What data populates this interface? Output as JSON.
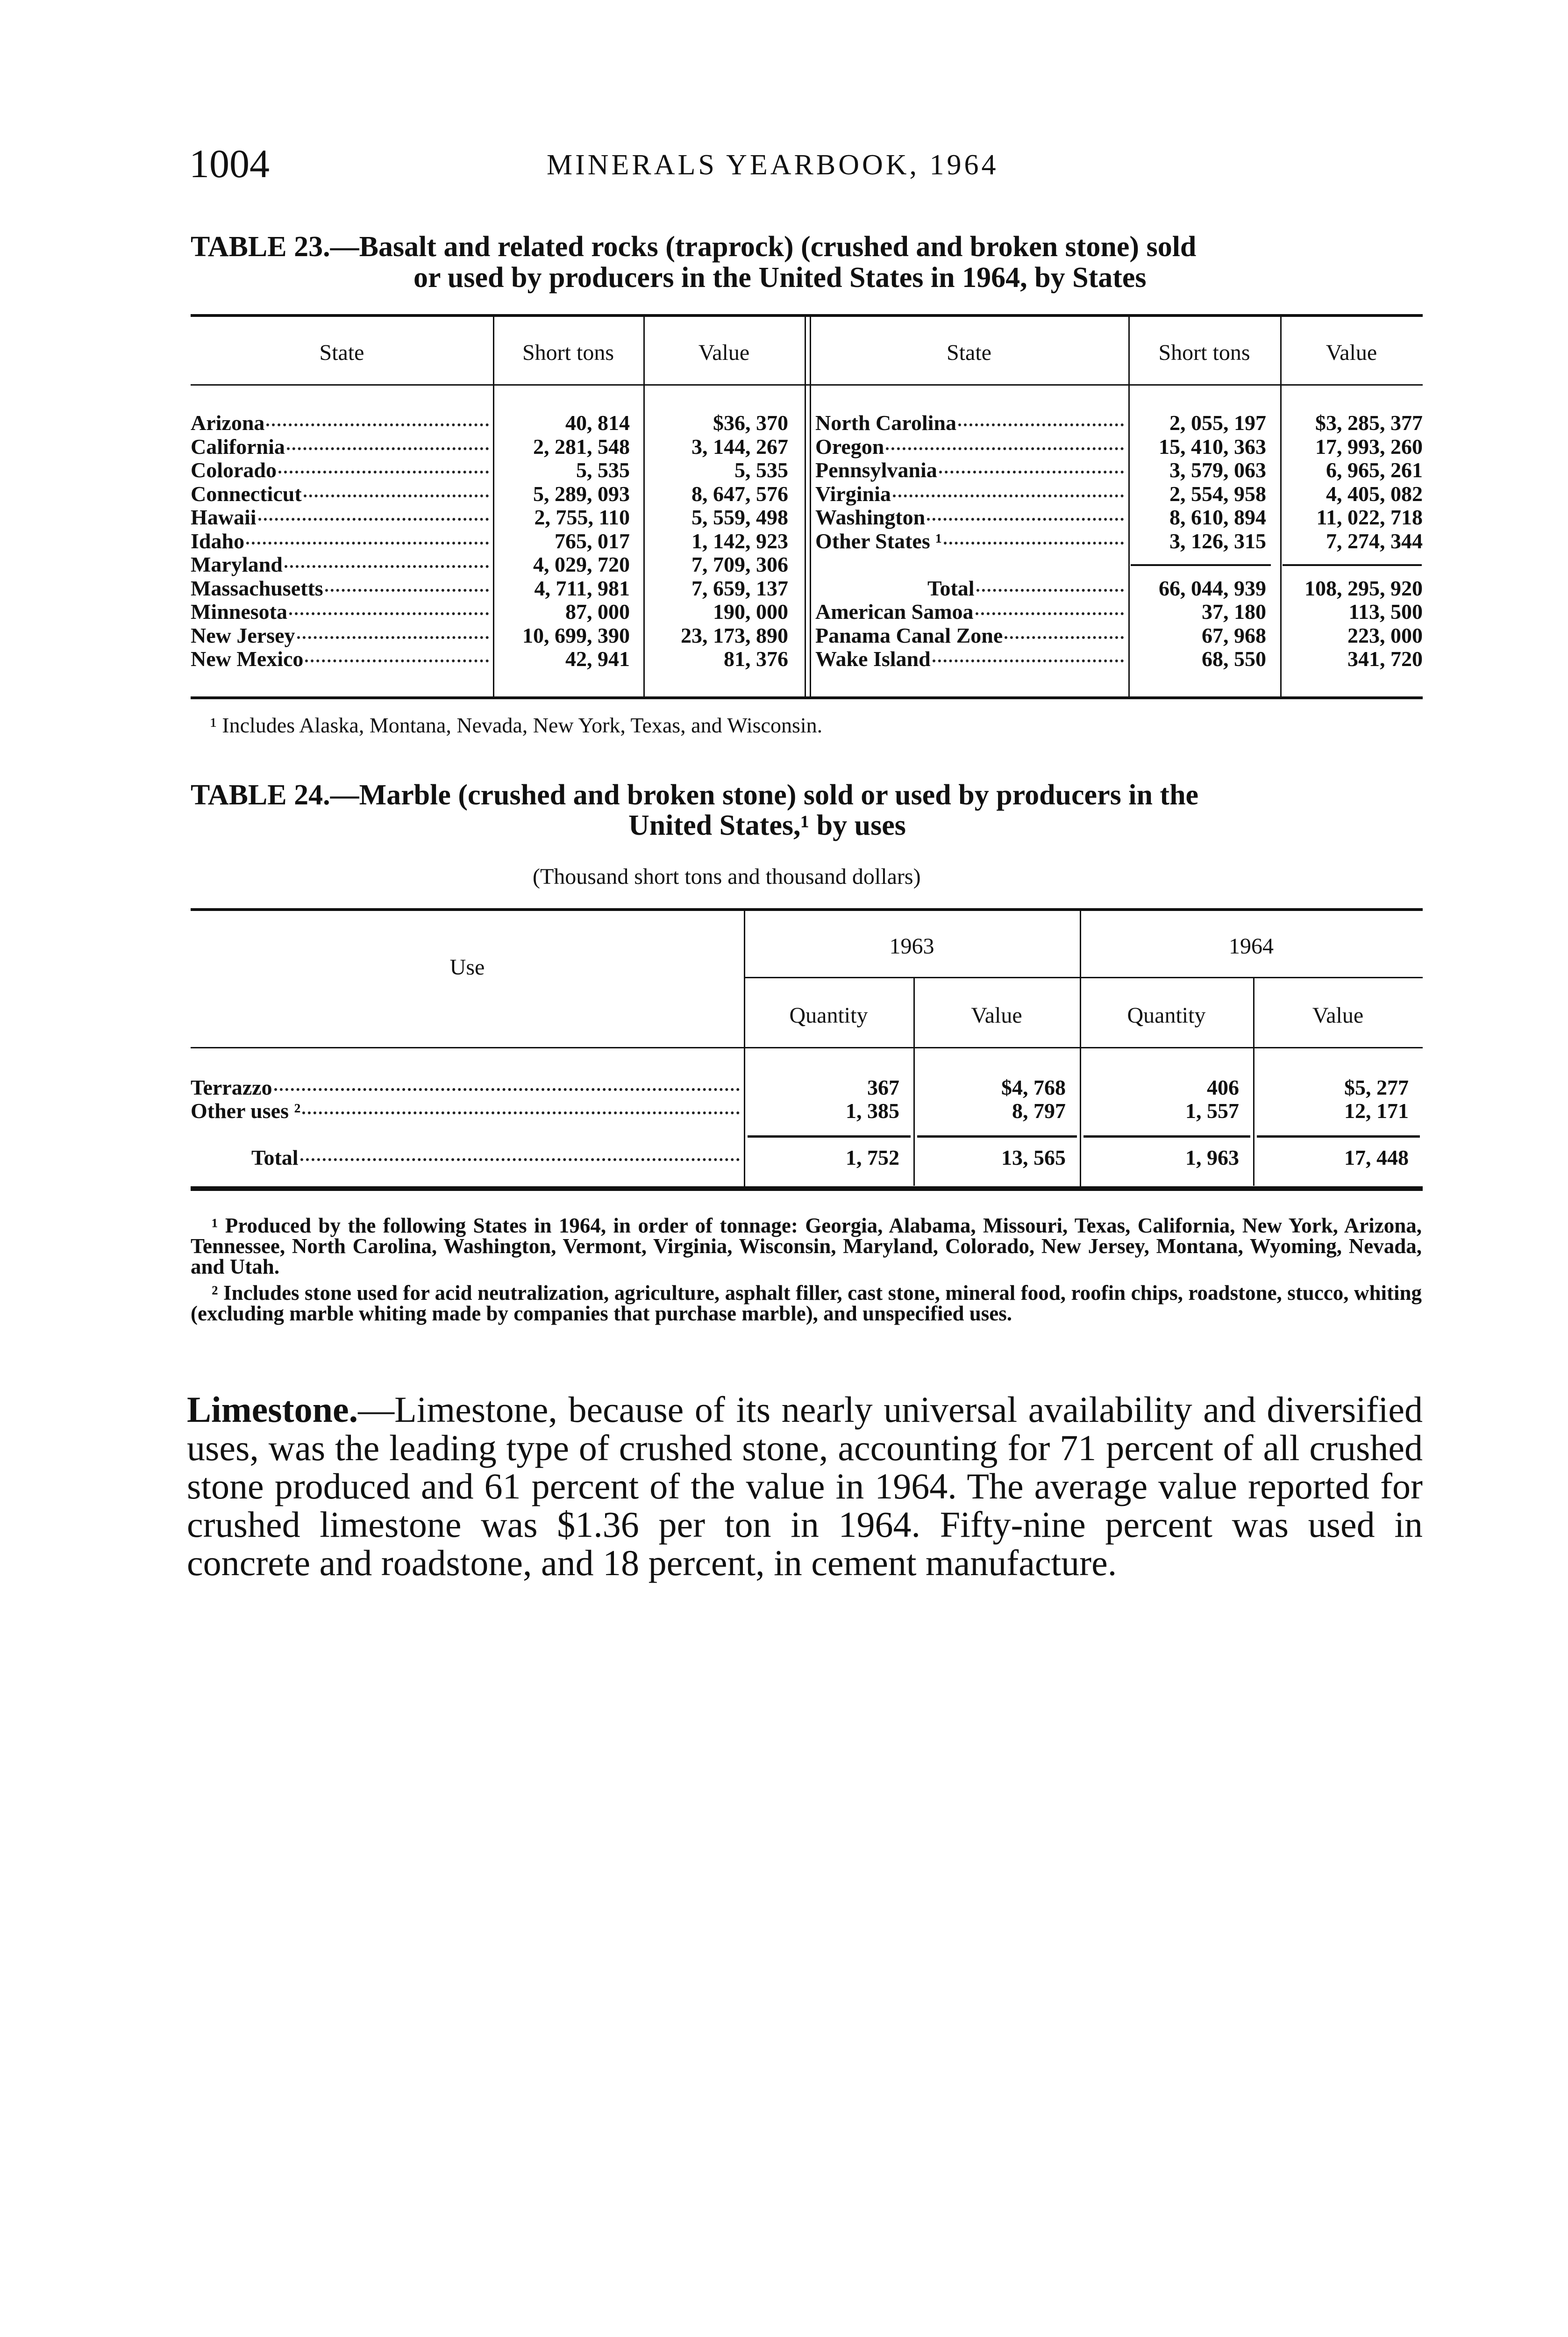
{
  "header": {
    "page_number": "1004",
    "running_title": "MINERALS YEARBOOK, 1964"
  },
  "table23": {
    "title_line1": "TABLE 23.—Basalt and related rocks (traprock) (crushed and broken stone) sold",
    "title_line2": "or used by producers in the United States in 1964, by States",
    "columns": [
      "State",
      "Short tons",
      "Value",
      "State",
      "Short tons",
      "Value"
    ],
    "left_rows": [
      [
        "Arizona",
        "40, 814",
        "$36, 370"
      ],
      [
        "California",
        "2, 281, 548",
        "3, 144, 267"
      ],
      [
        "Colorado",
        "5, 535",
        "5, 535"
      ],
      [
        "Connecticut",
        "5, 289, 093",
        "8, 647, 576"
      ],
      [
        "Hawaii",
        "2, 755, 110",
        "5, 559, 498"
      ],
      [
        "Idaho",
        "765, 017",
        "1, 142, 923"
      ],
      [
        "Maryland",
        "4, 029, 720",
        "7, 709, 306"
      ],
      [
        "Massachusetts",
        "4, 711, 981",
        "7, 659, 137"
      ],
      [
        "Minnesota",
        "87, 000",
        "190, 000"
      ],
      [
        "New Jersey",
        "10, 699, 390",
        "23, 173, 890"
      ],
      [
        "New Mexico",
        "42, 941",
        "81, 376"
      ]
    ],
    "right_rows": [
      [
        "North Carolina",
        "2, 055, 197",
        "$3, 285, 377"
      ],
      [
        "Oregon",
        "15, 410, 363",
        "17, 993, 260"
      ],
      [
        "Pennsylvania",
        "3, 579, 063",
        "6, 965, 261"
      ],
      [
        "Virginia",
        "2, 554, 958",
        "4, 405, 082"
      ],
      [
        "Washington",
        "8, 610, 894",
        "11, 022, 718"
      ],
      [
        "Other States ¹",
        "3, 126, 315",
        "7, 274, 344"
      ]
    ],
    "total_row": [
      "Total",
      "66, 044, 939",
      "108, 295, 920"
    ],
    "extra_rows": [
      [
        "American Samoa",
        "37, 180",
        "113, 500"
      ],
      [
        "Panama Canal Zone",
        "67, 968",
        "223, 000"
      ],
      [
        "Wake Island",
        "68, 550",
        "341, 720"
      ]
    ],
    "footnote": "¹ Includes Alaska, Montana, Nevada, New York, Texas, and Wisconsin."
  },
  "table24": {
    "title_line1": "TABLE 24.—Marble (crushed and broken stone) sold or used by producers in the",
    "title_line2": "United States,¹ by uses",
    "subtitle": "(Thousand short tons and thousand dollars)",
    "stub_header": "Use",
    "years": [
      "1963",
      "1964"
    ],
    "subcolumns": [
      "Quantity",
      "Value",
      "Quantity",
      "Value"
    ],
    "rows": [
      [
        "Terrazzo",
        "367",
        "$4, 768",
        "406",
        "$5, 277"
      ],
      [
        "Other uses ²",
        "1, 385",
        "8, 797",
        "1, 557",
        "12, 171"
      ]
    ],
    "total_row": [
      "Total",
      "1, 752",
      "13, 565",
      "1, 963",
      "17, 448"
    ],
    "footnote1": "¹ Produced by the following States in 1964, in order of tonnage: Georgia, Alabama, Missouri, Texas, California, New York, Arizona, Tennessee, North Carolina, Washington, Vermont, Virginia, Wisconsin, Maryland, Colorado, New Jersey, Montana, Wyoming, Nevada, and Utah.",
    "footnote2": "² Includes stone used for acid neutralization, agriculture, asphalt filler, cast stone, mineral food, roofin chips, roadstone, stucco, whiting (excluding marble whiting made by companies that purchase marble), and unspecified uses."
  },
  "body": {
    "heading": "Limestone.",
    "paragraph": "—Limestone, because of its nearly universal availability and diversified uses, was the leading type of crushed stone, accounting for 71 percent of all crushed stone produced and 61 percent of the value in 1964. The average value reported for crushed limestone was $1.36 per ton in 1964. Fifty-nine percent was used in concrete and roadstone, and 18 percent, in cement manufacture."
  }
}
